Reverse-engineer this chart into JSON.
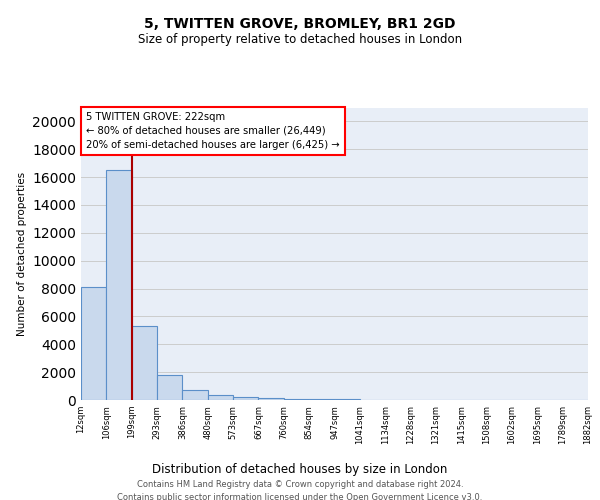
{
  "title": "5, TWITTEN GROVE, BROMLEY, BR1 2GD",
  "subtitle": "Size of property relative to detached houses in London",
  "xlabel": "Distribution of detached houses by size in London",
  "ylabel": "Number of detached properties",
  "footer_line1": "Contains HM Land Registry data © Crown copyright and database right 2024.",
  "footer_line2": "Contains public sector information licensed under the Open Government Licence v3.0.",
  "bin_labels": [
    "12sqm",
    "106sqm",
    "199sqm",
    "293sqm",
    "386sqm",
    "480sqm",
    "573sqm",
    "667sqm",
    "760sqm",
    "854sqm",
    "947sqm",
    "1041sqm",
    "1134sqm",
    "1228sqm",
    "1321sqm",
    "1415sqm",
    "1508sqm",
    "1602sqm",
    "1695sqm",
    "1789sqm",
    "1882sqm"
  ],
  "bar_heights": [
    8100,
    16500,
    5300,
    1800,
    700,
    350,
    250,
    150,
    100,
    60,
    40,
    30,
    20,
    15,
    10,
    8,
    6,
    5,
    4,
    3
  ],
  "bar_color": "#c9d9ed",
  "bar_edge_color": "#5b8fc9",
  "vline_color": "#aa0000",
  "annotation_text": "5 TWITTEN GROVE: 222sqm\n← 80% of detached houses are smaller (26,449)\n20% of semi-detached houses are larger (6,425) →",
  "ylim": [
    0,
    21000
  ],
  "yticks": [
    0,
    2000,
    4000,
    6000,
    8000,
    10000,
    12000,
    14000,
    16000,
    18000,
    20000
  ],
  "grid_color": "#cccccc",
  "background_color": "#e8eef7"
}
